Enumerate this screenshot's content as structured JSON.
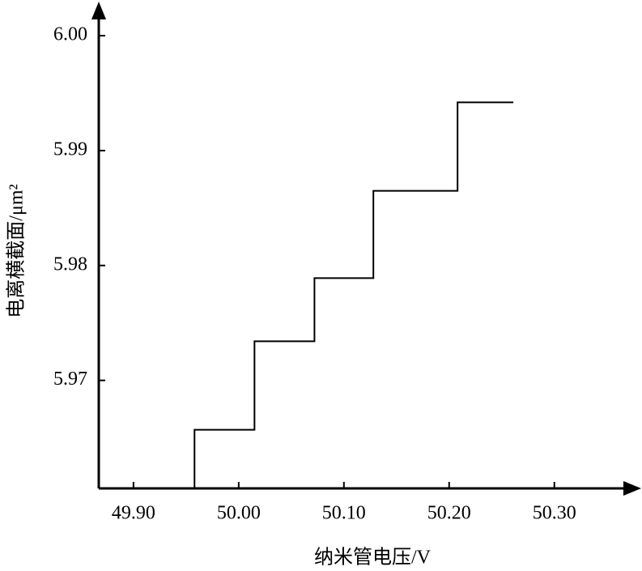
{
  "chart_data": {
    "type": "line",
    "xlabel": "纳米管电压/V",
    "ylabel": "电离横截面/μm²",
    "x": [
      49.958,
      49.958,
      50.015,
      50.015,
      50.072,
      50.072,
      50.128,
      50.128,
      50.208,
      50.208,
      50.261
    ],
    "series": [
      {
        "color": "#000000",
        "values": [
          5.9606,
          5.9657,
          5.9657,
          5.9734,
          5.9734,
          5.9789,
          5.9789,
          5.9865,
          5.9865,
          5.9942,
          5.9942
        ]
      }
    ],
    "xlim": [
      49.867,
      50.381
    ],
    "ylim": [
      5.9606,
      6.0024
    ],
    "xticks": [
      {
        "value": 49.9,
        "label": "49.90"
      },
      {
        "value": 50.0,
        "label": "50.00"
      },
      {
        "value": 50.1,
        "label": "50.10"
      },
      {
        "value": 50.2,
        "label": "50.20"
      },
      {
        "value": 50.3,
        "label": "50.30"
      }
    ],
    "yticks": [
      5.97,
      5.98,
      5.99,
      {
        "value": 6.0,
        "label": "6.00"
      }
    ],
    "grid": false
  }
}
